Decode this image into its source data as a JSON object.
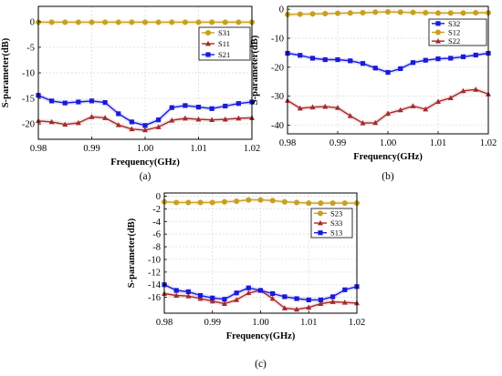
{
  "chart_data": [
    {
      "type": "line",
      "panel_label": "(a)",
      "xlabel": "Frequency(GHz)",
      "ylabel": "S-parameter(dB)",
      "xlim": [
        0.98,
        1.02
      ],
      "ylim": [
        -23,
        3
      ],
      "xticks": [
        0.98,
        0.99,
        1.0,
        1.01,
        1.02
      ],
      "xtick_labels": [
        "0.98",
        "0.99",
        "1.00",
        "1.01",
        "1.02"
      ],
      "yticks": [
        0,
        -5,
        -10,
        -15,
        -20
      ],
      "ytick_labels": [
        "0",
        "-5",
        "-10",
        "-15",
        "-20"
      ],
      "legend_position": "right",
      "grid": true,
      "x": [
        0.98,
        0.9825,
        0.985,
        0.9875,
        0.99,
        0.9925,
        0.995,
        0.9975,
        1.0,
        1.0025,
        1.005,
        1.0075,
        1.01,
        1.0125,
        1.015,
        1.0175,
        1.02
      ],
      "series": [
        {
          "name": "S31",
          "color": "#C8A020",
          "marker": "circle",
          "values": [
            -0.1,
            -0.1,
            -0.1,
            -0.1,
            -0.1,
            -0.1,
            -0.1,
            -0.1,
            -0.1,
            -0.1,
            -0.1,
            -0.1,
            -0.1,
            -0.1,
            -0.1,
            -0.1,
            -0.1
          ]
        },
        {
          "name": "S11",
          "color": "#A52A2A",
          "marker": "triangle",
          "values": [
            -19.4,
            -19.6,
            -20.1,
            -19.8,
            -18.6,
            -18.8,
            -20.2,
            -21.0,
            -21.2,
            -20.6,
            -19.3,
            -18.9,
            -19.1,
            -19.2,
            -19.1,
            -18.9,
            -18.8
          ]
        },
        {
          "name": "S21",
          "color": "#1A1AD8",
          "marker": "square",
          "values": [
            -14.4,
            -15.5,
            -15.9,
            -15.7,
            -15.5,
            -15.8,
            -18.0,
            -19.6,
            -20.3,
            -19.2,
            -16.8,
            -16.4,
            -16.7,
            -17.0,
            -16.5,
            -16.0,
            -15.7
          ]
        }
      ]
    },
    {
      "type": "line",
      "panel_label": "(b)",
      "xlabel": "Frequency(GHz)",
      "ylabel": "S-parameter(dB)",
      "xlim": [
        0.98,
        1.02
      ],
      "ylim": [
        -43,
        1
      ],
      "xticks": [
        0.98,
        0.99,
        1.0,
        1.01,
        1.02
      ],
      "xtick_labels": [
        "0.98",
        "0.99",
        "1.00",
        "1.01",
        "1.02"
      ],
      "yticks": [
        0,
        -10,
        -20,
        -30,
        -40
      ],
      "ytick_labels": [
        "0",
        "-10",
        "-20",
        "-30",
        "-40"
      ],
      "legend_position": "top-right",
      "grid": true,
      "x": [
        0.98,
        0.9825,
        0.985,
        0.9875,
        0.99,
        0.9925,
        0.995,
        0.9975,
        1.0,
        1.0025,
        1.005,
        1.0075,
        1.01,
        1.0125,
        1.015,
        1.0175,
        1.02
      ],
      "series": [
        {
          "name": "S32",
          "color": "#1A1AD8",
          "marker": "square",
          "values": [
            -15.2,
            -15.9,
            -16.9,
            -17.4,
            -17.4,
            -17.8,
            -18.7,
            -20.3,
            -21.8,
            -20.5,
            -18.4,
            -17.6,
            -17.1,
            -16.9,
            -16.4,
            -15.8,
            -15.2
          ]
        },
        {
          "name": "S12",
          "color": "#C8A020",
          "marker": "circle",
          "values": [
            -1.8,
            -1.7,
            -1.6,
            -1.5,
            -1.4,
            -1.3,
            -1.2,
            -1.0,
            -0.9,
            -1.0,
            -1.1,
            -1.2,
            -1.3,
            -1.3,
            -1.3,
            -1.2,
            -1.2
          ]
        },
        {
          "name": "S22",
          "color": "#A52A2A",
          "marker": "triangle",
          "values": [
            -31.5,
            -34.2,
            -33.8,
            -33.6,
            -34.0,
            -36.8,
            -39.3,
            -39.2,
            -36.0,
            -34.8,
            -33.4,
            -34.5,
            -31.9,
            -30.6,
            -28.2,
            -27.7,
            -29.3
          ]
        }
      ]
    },
    {
      "type": "line",
      "panel_label": "(c)",
      "xlabel": "Frequency(GHz)",
      "ylabel": "S-parameter(dB)",
      "xlim": [
        0.98,
        1.02
      ],
      "ylim": [
        -18.5,
        0.5
      ],
      "xticks": [
        0.98,
        0.99,
        1.0,
        1.01,
        1.02
      ],
      "xtick_labels": [
        "0.98",
        "0.99",
        "1.00",
        "1.01",
        "1.02"
      ],
      "yticks": [
        0,
        -2,
        -4,
        -6,
        -8,
        -10,
        -12,
        -14,
        -16
      ],
      "ytick_labels": [
        "0",
        "-2",
        "-4",
        "-6",
        "-8",
        "-10",
        "-12",
        "-14",
        "-16"
      ],
      "legend_position": "upper-left",
      "grid": true,
      "x": [
        0.98,
        0.9825,
        0.985,
        0.9875,
        0.99,
        0.9925,
        0.995,
        0.9975,
        1.0,
        1.0025,
        1.005,
        1.0075,
        1.01,
        1.0125,
        1.015,
        1.0175,
        1.02
      ],
      "series": [
        {
          "name": "S23",
          "color": "#C8A020",
          "marker": "circle",
          "values": [
            -0.9,
            -1.0,
            -1.0,
            -1.0,
            -1.0,
            -0.9,
            -0.8,
            -0.6,
            -0.6,
            -0.7,
            -0.9,
            -1.0,
            -1.1,
            -1.1,
            -1.1,
            -1.1,
            -1.1
          ]
        },
        {
          "name": "S33",
          "color": "#A52A2A",
          "marker": "triangle",
          "values": [
            -15.4,
            -15.7,
            -15.8,
            -16.2,
            -16.6,
            -17.0,
            -16.4,
            -15.3,
            -14.9,
            -16.2,
            -17.7,
            -17.9,
            -17.6,
            -17.0,
            -16.7,
            -16.8,
            -16.9
          ]
        },
        {
          "name": "S13",
          "color": "#1A1AD8",
          "marker": "square",
          "values": [
            -14.0,
            -14.9,
            -15.1,
            -15.7,
            -16.1,
            -16.3,
            -15.3,
            -14.5,
            -14.9,
            -15.4,
            -15.9,
            -16.2,
            -16.4,
            -16.4,
            -15.9,
            -14.8,
            -14.3
          ]
        }
      ]
    }
  ]
}
